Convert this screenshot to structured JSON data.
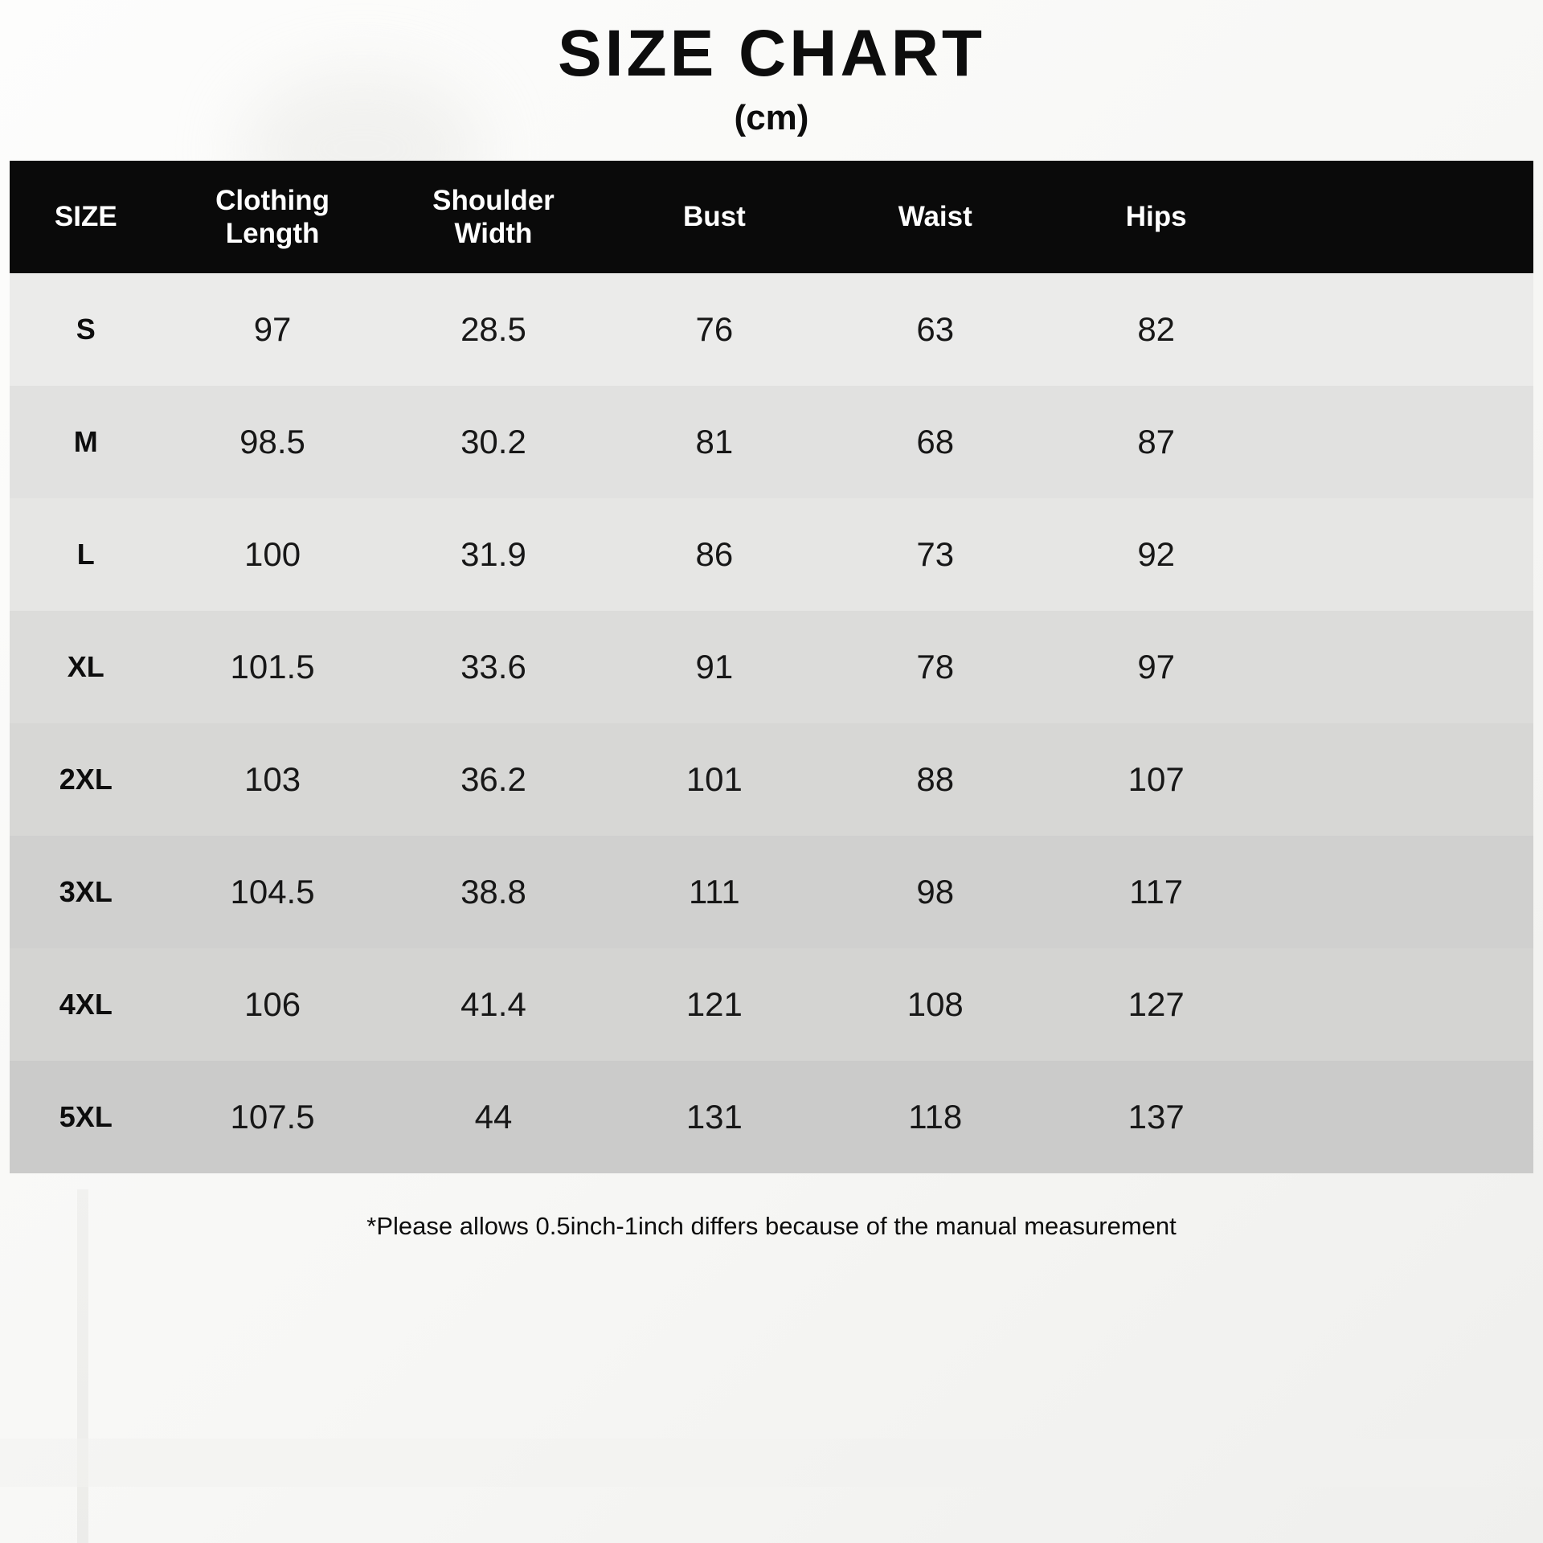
{
  "page": {
    "title": "SIZE CHART",
    "subtitle": "(cm)",
    "footnote": "*Please allows 0.5inch-1inch differs because of the manual measurement"
  },
  "chart_data": {
    "type": "table",
    "title": "SIZE CHART (cm)",
    "columns": [
      "SIZE",
      "Clothing\nLength",
      "Shoulder\nWidth",
      "Bust",
      "Waist",
      "Hips"
    ],
    "rows": [
      [
        "S",
        "97",
        "28.5",
        "76",
        "63",
        "82"
      ],
      [
        "M",
        "98.5",
        "30.2",
        "81",
        "68",
        "87"
      ],
      [
        "L",
        "100",
        "31.9",
        "86",
        "73",
        "92"
      ],
      [
        "XL",
        "101.5",
        "33.6",
        "91",
        "78",
        "97"
      ],
      [
        "2XL",
        "103",
        "36.2",
        "101",
        "88",
        "107"
      ],
      [
        "3XL",
        "104.5",
        "38.8",
        "111",
        "98",
        "117"
      ],
      [
        "4XL",
        "106",
        "41.4",
        "121",
        "108",
        "127"
      ],
      [
        "5XL",
        "107.5",
        "44",
        "131",
        "118",
        "137"
      ]
    ]
  },
  "colors": {
    "header_bg": "#0a0a0a",
    "header_text": "#ffffff",
    "row_light": "#ebebea",
    "row_dark": "#cbcbca"
  }
}
